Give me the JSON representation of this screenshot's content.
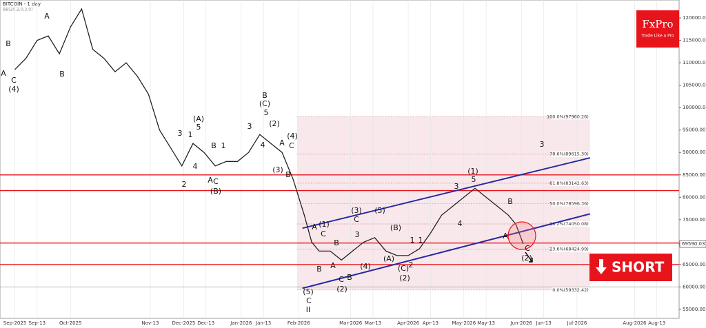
{
  "chart_data": {
    "type": "line",
    "title": "BITCOIN - 1 day",
    "subtitle": "BB(20,2,0,2,0)",
    "x": [
      0,
      6,
      12,
      18,
      24,
      30,
      36,
      42,
      48,
      54,
      60,
      66,
      72,
      78,
      84,
      90,
      96,
      102,
      108,
      114,
      120,
      126,
      132,
      138,
      144,
      150,
      156,
      160,
      164,
      170,
      176,
      182,
      188,
      194,
      200,
      206,
      212,
      218,
      224,
      230,
      236,
      242,
      248,
      254,
      260,
      266,
      270,
      274
    ],
    "values": [
      108500,
      111000,
      115000,
      116000,
      112000,
      118000,
      122000,
      113000,
      111000,
      108000,
      110000,
      107000,
      103000,
      95000,
      91000,
      87000,
      92000,
      90000,
      87000,
      88000,
      88000,
      90000,
      94000,
      92000,
      90000,
      84000,
      76000,
      70000,
      68000,
      68000,
      66000,
      68000,
      70000,
      71000,
      68000,
      67000,
      67000,
      68500,
      72000,
      76000,
      78000,
      80000,
      82000,
      80000,
      78000,
      76000,
      74000,
      69590
    ],
    "color": "#222222",
    "xlim": [
      -8,
      358
    ],
    "ylim": [
      53000,
      124000
    ],
    "xticks": [
      {
        "value": 0,
        "label": "Sep-2025"
      },
      {
        "value": 12,
        "label": "Sep-13"
      },
      {
        "value": 30,
        "label": "Oct-2025"
      },
      {
        "value": 73,
        "label": "Nov-13"
      },
      {
        "value": 91,
        "label": "Dec-2025"
      },
      {
        "value": 103,
        "label": "Dec-13"
      },
      {
        "value": 122,
        "label": "Jan-2026"
      },
      {
        "value": 134,
        "label": "Jan-13"
      },
      {
        "value": 153,
        "label": "Feb-2026"
      },
      {
        "value": 181,
        "label": "Mar-2026"
      },
      {
        "value": 193,
        "label": "Mar-13"
      },
      {
        "value": 212,
        "label": "Apr-2026"
      },
      {
        "value": 224,
        "label": "Apr-13"
      },
      {
        "value": 242,
        "label": "May-2026"
      },
      {
        "value": 254,
        "label": "May-13"
      },
      {
        "value": 273,
        "label": "Jun-2026"
      },
      {
        "value": 285,
        "label": "Jun-13"
      },
      {
        "value": 303,
        "label": "Jul-2026"
      },
      {
        "value": 334,
        "label": "Aug-2026"
      },
      {
        "value": 346,
        "label": "Aug-13"
      }
    ],
    "yticks": [
      {
        "value": 55000,
        "label": "55000.00"
      },
      {
        "value": 60000,
        "label": "60000.00"
      },
      {
        "value": 65000,
        "label": "65000.00"
      },
      {
        "value": 75000,
        "label": "75000.00"
      },
      {
        "value": 80000,
        "label": "80000.00"
      },
      {
        "value": 85000,
        "label": "85000.00"
      },
      {
        "value": 90000,
        "label": "90000.00"
      },
      {
        "value": 95000,
        "label": "95000.00"
      },
      {
        "value": 100000,
        "label": "100000.00"
      },
      {
        "value": 105000,
        "label": "105000.00"
      },
      {
        "value": 110000,
        "label": "110000.00"
      },
      {
        "value": 115000,
        "label": "115000.00"
      },
      {
        "value": 120000,
        "label": "120000.00"
      }
    ],
    "last_price": {
      "value": 69590.03,
      "label": "69590.03"
    },
    "levels": [
      85000,
      81500,
      69800,
      65000
    ],
    "level_color": "#e8141c",
    "fib": [
      {
        "value": 97960.26,
        "label": "100.0%(97960.26)"
      },
      {
        "value": 89615.3,
        "label": "78.6%(89615.30)"
      },
      {
        "value": 83142.63,
        "label": "61.8%(83142.63)"
      },
      {
        "value": 78596.36,
        "label": "50.0%(78596.36)"
      },
      {
        "value": 74050.08,
        "label": "38.2%(74050.08)"
      },
      {
        "value": 68424.99,
        "label": "23.6%(68424.99)"
      },
      {
        "value": 59332.42,
        "label": "0.0%(59332.42)"
      }
    ],
    "channel": [
      {
        "x": [
          155,
          310
        ],
        "y": [
          59700,
          76300
        ]
      },
      {
        "x": [
          155,
          310
        ],
        "y": [
          73100,
          88800
        ]
      }
    ],
    "channel_color": "#2a2aa0",
    "annotations": [
      "A",
      "B",
      "A",
      "C",
      "(4)",
      "B",
      "(A)",
      "5",
      "3",
      "1",
      "B",
      "1",
      "4",
      "2",
      "(B)",
      "C",
      "A",
      "3",
      "4",
      "5",
      "(C)",
      "B",
      "(2)",
      "(3)",
      "(4)",
      "A",
      "C",
      "B",
      "(5)",
      "C",
      "II",
      "A",
      "B",
      "(1)",
      "C",
      "B",
      "A",
      "C",
      "(2)",
      "B",
      "3",
      "(3)",
      "C",
      "1",
      "(5)",
      "(B)",
      "(A)",
      "(4)",
      "1",
      "2",
      "(C)",
      "(2)",
      "(1)",
      "5",
      "3",
      "4",
      "B",
      "A",
      "C",
      "(2)",
      "3"
    ],
    "logo": {
      "name": "FxPro",
      "tagline": "Trade Like a Pro"
    },
    "signal": "SHORT"
  }
}
